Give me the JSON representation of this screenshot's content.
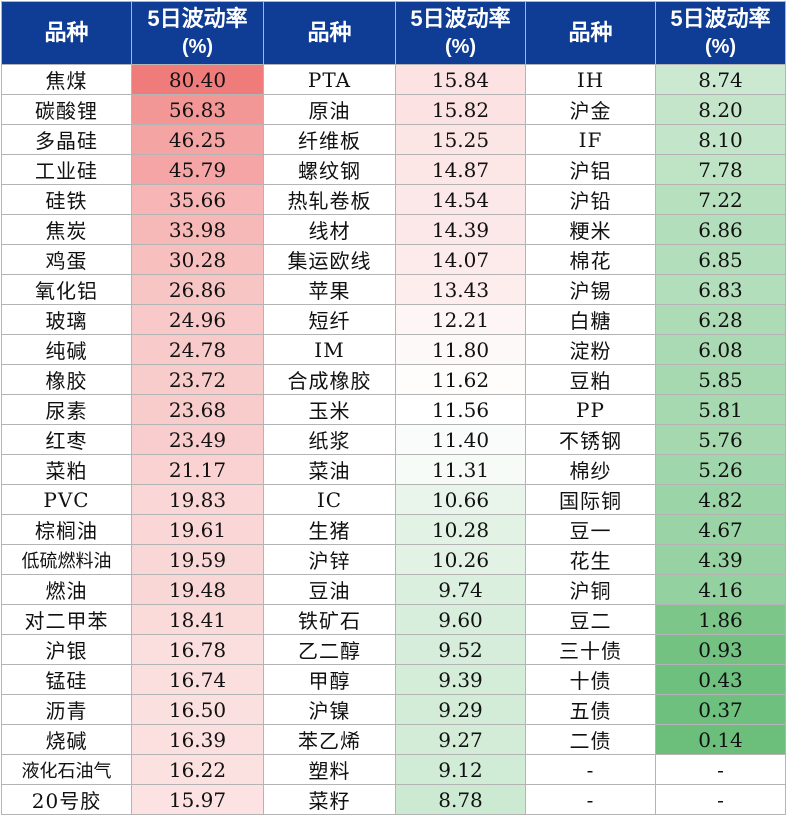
{
  "headers": {
    "variety": "品种",
    "vol_title": "5日波动率",
    "vol_unit": "(%)"
  },
  "colors": {
    "header_bg": "#0f3d96",
    "high_red": "#f07b7b",
    "low_green": "#6bbf7b",
    "neutral": "#ffffff"
  },
  "columns": [
    {
      "rows": [
        {
          "name": "焦煤",
          "value": "80.40"
        },
        {
          "name": "碳酸锂",
          "value": "56.83"
        },
        {
          "name": "多晶硅",
          "value": "46.25"
        },
        {
          "name": "工业硅",
          "value": "45.79"
        },
        {
          "name": "硅铁",
          "value": "35.66"
        },
        {
          "name": "焦炭",
          "value": "33.98"
        },
        {
          "name": "鸡蛋",
          "value": "30.28"
        },
        {
          "name": "氧化铝",
          "value": "26.86"
        },
        {
          "name": "玻璃",
          "value": "24.96"
        },
        {
          "name": "纯碱",
          "value": "24.78"
        },
        {
          "name": "橡胶",
          "value": "23.72"
        },
        {
          "name": "尿素",
          "value": "23.68"
        },
        {
          "name": "红枣",
          "value": "23.49"
        },
        {
          "name": "菜粕",
          "value": "21.17"
        },
        {
          "name": "PVC",
          "value": "19.83"
        },
        {
          "name": "棕榈油",
          "value": "19.61"
        },
        {
          "name": "低硫燃料油",
          "value": "19.59"
        },
        {
          "name": "燃油",
          "value": "19.48"
        },
        {
          "name": "对二甲苯",
          "value": "18.41"
        },
        {
          "name": "沪银",
          "value": "16.78"
        },
        {
          "name": "锰硅",
          "value": "16.74"
        },
        {
          "name": "沥青",
          "value": "16.50"
        },
        {
          "name": "烧碱",
          "value": "16.39"
        },
        {
          "name": "液化石油气",
          "value": "16.22"
        },
        {
          "name": "20号胶",
          "value": "15.97"
        }
      ]
    },
    {
      "rows": [
        {
          "name": "PTA",
          "value": "15.84"
        },
        {
          "name": "原油",
          "value": "15.82"
        },
        {
          "name": "纤维板",
          "value": "15.25"
        },
        {
          "name": "螺纹钢",
          "value": "14.87"
        },
        {
          "name": "热轧卷板",
          "value": "14.54"
        },
        {
          "name": "线材",
          "value": "14.39"
        },
        {
          "name": "集运欧线",
          "value": "14.07"
        },
        {
          "name": "苹果",
          "value": "13.43"
        },
        {
          "name": "短纤",
          "value": "12.21"
        },
        {
          "name": "IM",
          "value": "11.80"
        },
        {
          "name": "合成橡胶",
          "value": "11.62"
        },
        {
          "name": "玉米",
          "value": "11.56"
        },
        {
          "name": "纸浆",
          "value": "11.40"
        },
        {
          "name": "菜油",
          "value": "11.31"
        },
        {
          "name": "IC",
          "value": "10.66"
        },
        {
          "name": "生猪",
          "value": "10.28"
        },
        {
          "name": "沪锌",
          "value": "10.26"
        },
        {
          "name": "豆油",
          "value": "9.74"
        },
        {
          "name": "铁矿石",
          "value": "9.60"
        },
        {
          "name": "乙二醇",
          "value": "9.52"
        },
        {
          "name": "甲醇",
          "value": "9.39"
        },
        {
          "name": "沪镍",
          "value": "9.29"
        },
        {
          "name": "苯乙烯",
          "value": "9.27"
        },
        {
          "name": "塑料",
          "value": "9.12"
        },
        {
          "name": "菜籽",
          "value": "8.78"
        }
      ]
    },
    {
      "rows": [
        {
          "name": "IH",
          "value": "8.74"
        },
        {
          "name": "沪金",
          "value": "8.20"
        },
        {
          "name": "IF",
          "value": "8.10"
        },
        {
          "name": "沪铝",
          "value": "7.78"
        },
        {
          "name": "沪铅",
          "value": "7.22"
        },
        {
          "name": "粳米",
          "value": "6.86"
        },
        {
          "name": "棉花",
          "value": "6.85"
        },
        {
          "name": "沪锡",
          "value": "6.83"
        },
        {
          "name": "白糖",
          "value": "6.28"
        },
        {
          "name": "淀粉",
          "value": "6.08"
        },
        {
          "name": "豆粕",
          "value": "5.85"
        },
        {
          "name": "PP",
          "value": "5.81"
        },
        {
          "name": "不锈钢",
          "value": "5.76"
        },
        {
          "name": "棉纱",
          "value": "5.26"
        },
        {
          "name": "国际铜",
          "value": "4.82"
        },
        {
          "name": "豆一",
          "value": "4.67"
        },
        {
          "name": "花生",
          "value": "4.39"
        },
        {
          "name": "沪铜",
          "value": "4.16"
        },
        {
          "name": "豆二",
          "value": "1.86"
        },
        {
          "name": "三十债",
          "value": "0.93"
        },
        {
          "name": "十债",
          "value": "0.43"
        },
        {
          "name": "五债",
          "value": "0.37"
        },
        {
          "name": "二债",
          "value": "0.14"
        },
        {
          "name": "-",
          "value": "-"
        },
        {
          "name": "-",
          "value": "-"
        }
      ]
    }
  ]
}
